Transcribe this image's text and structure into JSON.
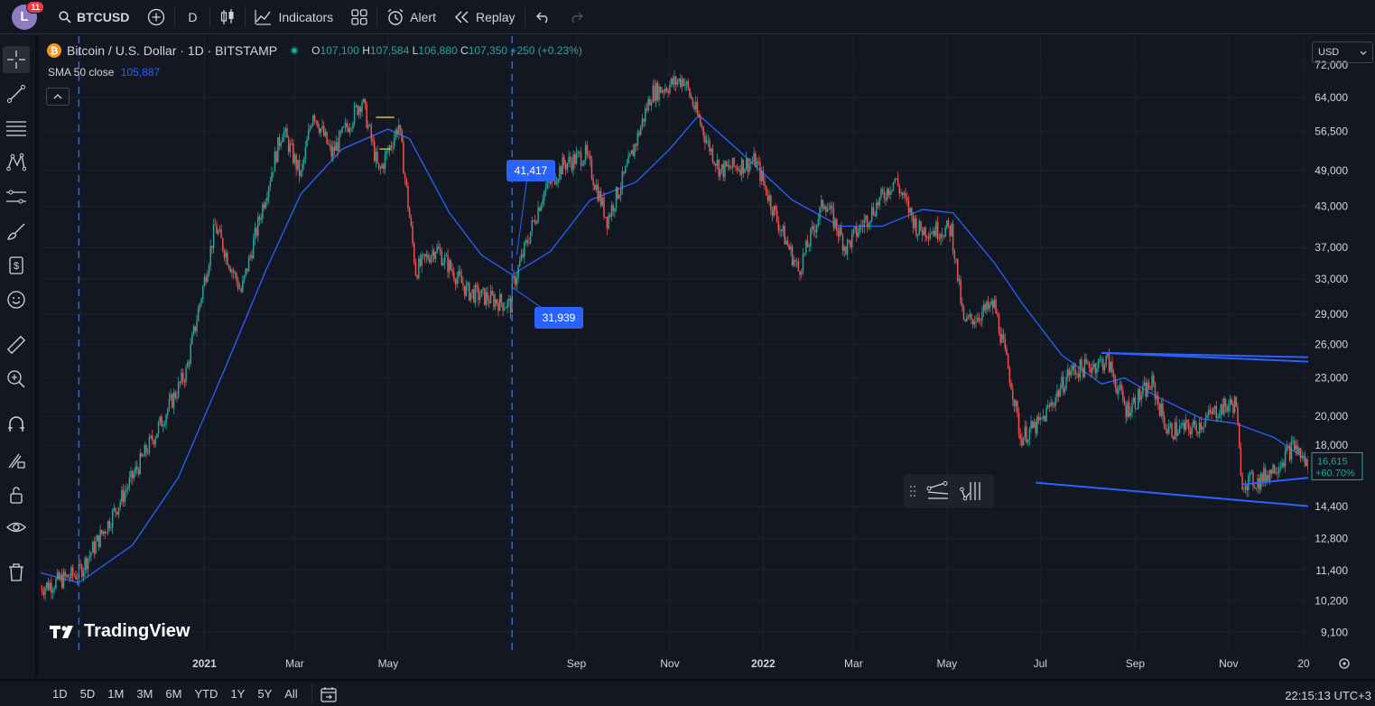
{
  "topbar": {
    "avatar_letter": "L",
    "notification_count": "11",
    "symbol": "BTCUSD",
    "interval": "D",
    "indicators_label": "Indicators",
    "alert_label": "Alert",
    "replay_label": "Replay"
  },
  "legend": {
    "title": "Bitcoin / U.S. Dollar · 1D · BITSTAMP",
    "open_label": "O",
    "open": "107,100",
    "high_label": "H",
    "high": "107,584",
    "low_label": "L",
    "low": "106,880",
    "close_label": "C",
    "close": "107,350",
    "change": "+250 (+0.23%)",
    "sma_label": "SMA 50 close",
    "sma_value": "105,887"
  },
  "currency": "USD",
  "callouts": {
    "upper": "41,417",
    "lower": "31,939"
  },
  "price_marker": {
    "price": "16,615",
    "change": "+60.70%"
  },
  "bottombar": {
    "ranges": [
      "1D",
      "5D",
      "1M",
      "3M",
      "6M",
      "YTD",
      "1Y",
      "5Y",
      "All"
    ],
    "clock": "22:15:13 UTC+3"
  },
  "logo_text": "TradingView",
  "colors": {
    "up": "#26a69a",
    "down": "#ef5350",
    "sma": "#2962ff",
    "accent": "#2962ff",
    "background": "#131722"
  },
  "chart_data": {
    "type": "candlestick",
    "title": "Bitcoin / U.S. Dollar · 1D · BITSTAMP",
    "y_scale": "log",
    "ylim": [
      8500,
      80000
    ],
    "y_ticks": [
      "72,000",
      "64,000",
      "56,500",
      "49,000",
      "43,000",
      "37,000",
      "33,000",
      "29,000",
      "26,000",
      "23,000",
      "20,000",
      "18,000",
      "14,400",
      "12,800",
      "11,400",
      "10,200",
      "9,100"
    ],
    "y_tick_values": [
      72000,
      64000,
      56500,
      49000,
      43000,
      37000,
      33000,
      29000,
      26000,
      23000,
      20000,
      18000,
      14400,
      12800,
      11400,
      10200,
      9100
    ],
    "x_ticks": [
      "2021",
      "Mar",
      "May",
      "Sep",
      "Nov",
      "2022",
      "Mar",
      "May",
      "Jul",
      "Sep",
      "Nov",
      "20"
    ],
    "x_tick_dates": [
      "2021-01-01",
      "2021-03-01",
      "2021-05-01",
      "2021-09-01",
      "2021-11-01",
      "2022-01-01",
      "2022-03-01",
      "2022-05-01",
      "2022-07-01",
      "2022-09-01",
      "2022-11-01",
      "2022-12-20"
    ],
    "x_range": [
      "2020-09-16",
      "2022-12-23"
    ],
    "highlighted_dates": [
      "Sun 11 Oct '20",
      "Wed 21 Jul '21"
    ],
    "highlighted_date_values": [
      "2020-10-11",
      "2021-07-21"
    ],
    "price_path": [
      [
        "2020-09-16",
        10700
      ],
      [
        "2020-10-11",
        11300
      ],
      [
        "2020-11-01",
        13800
      ],
      [
        "2020-12-01",
        19000
      ],
      [
        "2020-12-20",
        23500
      ],
      [
        "2021-01-08",
        40000
      ],
      [
        "2021-01-25",
        31500
      ],
      [
        "2021-02-10",
        45000
      ],
      [
        "2021-02-21",
        57000
      ],
      [
        "2021-03-05",
        48000
      ],
      [
        "2021-03-13",
        61000
      ],
      [
        "2021-03-25",
        52000
      ],
      [
        "2021-04-14",
        63500
      ],
      [
        "2021-04-25",
        48500
      ],
      [
        "2021-05-08",
        58000
      ],
      [
        "2021-05-19",
        34000
      ],
      [
        "2021-06-01",
        37000
      ],
      [
        "2021-06-22",
        31500
      ],
      [
        "2021-07-20",
        30000
      ],
      [
        "2021-07-21",
        32000
      ],
      [
        "2021-08-10",
        45000
      ],
      [
        "2021-08-23",
        50000
      ],
      [
        "2021-09-07",
        52000
      ],
      [
        "2021-09-21",
        41000
      ],
      [
        "2021-10-05",
        50000
      ],
      [
        "2021-10-20",
        65000
      ],
      [
        "2021-11-10",
        68500
      ],
      [
        "2021-11-26",
        54000
      ],
      [
        "2021-12-04",
        49000
      ],
      [
        "2021-12-27",
        50700
      ],
      [
        "2022-01-10",
        41000
      ],
      [
        "2022-01-24",
        34000
      ],
      [
        "2022-02-10",
        44000
      ],
      [
        "2022-02-24",
        37000
      ],
      [
        "2022-03-28",
        47500
      ],
      [
        "2022-04-12",
        39500
      ],
      [
        "2022-05-04",
        39500
      ],
      [
        "2022-05-12",
        28000
      ],
      [
        "2022-06-01",
        30000
      ],
      [
        "2022-06-13",
        22000
      ],
      [
        "2022-06-18",
        18500
      ],
      [
        "2022-07-01",
        19500
      ],
      [
        "2022-07-20",
        23500
      ],
      [
        "2022-08-14",
        24500
      ],
      [
        "2022-08-26",
        20500
      ],
      [
        "2022-09-12",
        22500
      ],
      [
        "2022-09-22",
        19000
      ],
      [
        "2022-10-10",
        19200
      ],
      [
        "2022-10-25",
        20500
      ],
      [
        "2022-11-06",
        21000
      ],
      [
        "2022-11-09",
        15800
      ],
      [
        "2022-11-21",
        15800
      ],
      [
        "2022-12-05",
        17000
      ],
      [
        "2022-12-14",
        18000
      ],
      [
        "2022-12-23",
        16615
      ]
    ],
    "sma_path": [
      [
        "2020-09-16",
        11300
      ],
      [
        "2020-10-11",
        10900
      ],
      [
        "2020-11-15",
        12500
      ],
      [
        "2020-12-15",
        16000
      ],
      [
        "2021-01-15",
        24000
      ],
      [
        "2021-02-10",
        34000
      ],
      [
        "2021-03-05",
        45000
      ],
      [
        "2021-04-01",
        53000
      ],
      [
        "2021-05-01",
        57000
      ],
      [
        "2021-05-15",
        55000
      ],
      [
        "2021-06-10",
        42000
      ],
      [
        "2021-07-01",
        36000
      ],
      [
        "2021-07-21",
        33500
      ],
      [
        "2021-08-15",
        36500
      ],
      [
        "2021-09-10",
        44000
      ],
      [
        "2021-10-10",
        47000
      ],
      [
        "2021-11-01",
        53000
      ],
      [
        "2021-11-20",
        60000
      ],
      [
        "2021-12-15",
        53000
      ],
      [
        "2022-01-20",
        44000
      ],
      [
        "2022-02-20",
        40000
      ],
      [
        "2022-03-20",
        40000
      ],
      [
        "2022-04-15",
        42500
      ],
      [
        "2022-05-05",
        42000
      ],
      [
        "2022-06-01",
        35000
      ],
      [
        "2022-06-20",
        30000
      ],
      [
        "2022-07-15",
        25000
      ],
      [
        "2022-08-10",
        22500
      ],
      [
        "2022-08-25",
        23000
      ],
      [
        "2022-09-15",
        21500
      ],
      [
        "2022-10-15",
        19800
      ],
      [
        "2022-11-05",
        19500
      ],
      [
        "2022-12-01",
        18500
      ],
      [
        "2022-12-23",
        17000
      ]
    ],
    "trendlines": [
      {
        "from": [
          "2022-08-10",
          25200
        ],
        "to": [
          "2022-12-25",
          24800
        ]
      },
      {
        "from": [
          "2022-08-10",
          25200
        ],
        "to": [
          "2022-12-25",
          24400
        ]
      },
      {
        "from": [
          "2022-06-28",
          15700
        ],
        "to": [
          "2022-12-25",
          14400
        ]
      },
      {
        "from": [
          "2022-11-10",
          15600
        ],
        "to": [
          "2022-12-25",
          16000
        ]
      }
    ]
  }
}
